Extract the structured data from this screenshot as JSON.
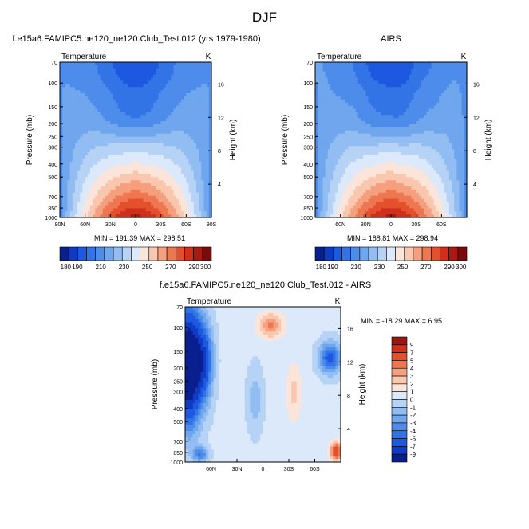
{
  "figure": {
    "title": "DJF",
    "panel_titles": {
      "top_left": "f.e15a6.FAMIPC5.ne120_ne120.Club_Test.012 (yrs 1979-1980)",
      "top_right": "AIRS",
      "bottom": "f.e15a6.FAMIPC5.ne120_ne120.Club_Test.012 - AIRS"
    },
    "minmax": {
      "top_left": "MIN = 191.39  MAX = 298.51",
      "top_right": "MIN = 188.81  MAX = 298.94",
      "bottom": "MIN = -18.29  MAX =   6.95"
    }
  },
  "chart_data": [
    {
      "type": "heatmap",
      "title": "f.e15a6.FAMIPC5.ne120_ne120.Club_Test.012 (yrs 1979-1980)",
      "variable_label": "Temperature",
      "units": "K",
      "ylabel": "Pressure (mb)",
      "ylabel_right": "Height (km)",
      "x_ticks": [
        "90N",
        "60N",
        "30N",
        "0",
        "30S",
        "60S",
        "90S"
      ],
      "y_ticks": [
        "70",
        "100",
        "150",
        "200",
        "250",
        "300",
        "400",
        "500",
        "700",
        "850",
        "1000"
      ],
      "y_right_ticks": [
        "16",
        "12",
        "8",
        "4"
      ],
      "min": 191.39,
      "max": 298.51,
      "colorbar_levels": [
        180,
        190,
        200,
        210,
        220,
        230,
        240,
        250,
        260,
        270,
        280,
        290,
        300
      ],
      "colorbar_labels": [
        "180",
        "190",
        "210",
        "230",
        "250",
        "270",
        "290",
        "300"
      ]
    },
    {
      "type": "heatmap",
      "title": "AIRS",
      "variable_label": "Temperature",
      "units": "K",
      "ylabel": "Pressure (mb)",
      "ylabel_right": "Height (km)",
      "x_ticks": [
        "60N",
        "30N",
        "0",
        "30S",
        "60S"
      ],
      "y_ticks": [
        "70",
        "100",
        "150",
        "200",
        "250",
        "300",
        "400",
        "500",
        "700",
        "850",
        "1000"
      ],
      "y_right_ticks": [
        "16",
        "12",
        "8",
        "4"
      ],
      "min": 188.81,
      "max": 298.94,
      "colorbar_levels": [
        180,
        190,
        200,
        210,
        220,
        230,
        240,
        250,
        260,
        270,
        280,
        290,
        300
      ],
      "colorbar_labels": [
        "180",
        "190",
        "210",
        "230",
        "250",
        "270",
        "290",
        "300"
      ]
    },
    {
      "type": "heatmap",
      "title": "f.e15a6.FAMIPC5.ne120_ne120.Club_Test.012 - AIRS",
      "variable_label": "Temperature",
      "units": "K",
      "ylabel": "Pressure (mb)",
      "ylabel_right": "Height (km)",
      "x_ticks": [
        "60N",
        "30N",
        "0",
        "30S",
        "60S"
      ],
      "y_ticks": [
        "70",
        "100",
        "150",
        "200",
        "250",
        "300",
        "400",
        "500",
        "700",
        "850",
        "1000"
      ],
      "y_right_ticks": [
        "16",
        "12",
        "8",
        "4"
      ],
      "min": -18.29,
      "max": 6.95,
      "colorbar_levels": [
        9,
        7,
        5,
        4,
        3,
        2,
        1,
        0,
        -1,
        -2,
        -3,
        -4,
        -5,
        -7,
        -9
      ],
      "colorbar_labels": [
        "9",
        "7",
        "5",
        "4",
        "3",
        "2",
        "1",
        "0",
        "-1",
        "-2",
        "-3",
        "-4",
        "-5",
        "-7",
        "-9"
      ]
    }
  ],
  "colors": {
    "abs_scale": [
      "#0a1f8f",
      "#0f3bc4",
      "#1c58e0",
      "#3274e6",
      "#4d8cea",
      "#6fa6ee",
      "#92bdf2",
      "#b6d3f6",
      "#dce9fb",
      "#fbe4d9",
      "#f9c6ae",
      "#f4a07f",
      "#ee7650",
      "#e4502e",
      "#cf2f1c",
      "#a81a12",
      "#7a0b0b"
    ],
    "diff_scale": [
      "#0a1f8f",
      "#0f3bc4",
      "#1c58e0",
      "#3274e6",
      "#4d8cea",
      "#6fa6ee",
      "#92bdf2",
      "#b6d3f6",
      "#dce9fb",
      "#fbe4d9",
      "#f9c6ae",
      "#f4a07f",
      "#ee7650",
      "#e4502e",
      "#cf2f1c",
      "#9e1410"
    ]
  }
}
